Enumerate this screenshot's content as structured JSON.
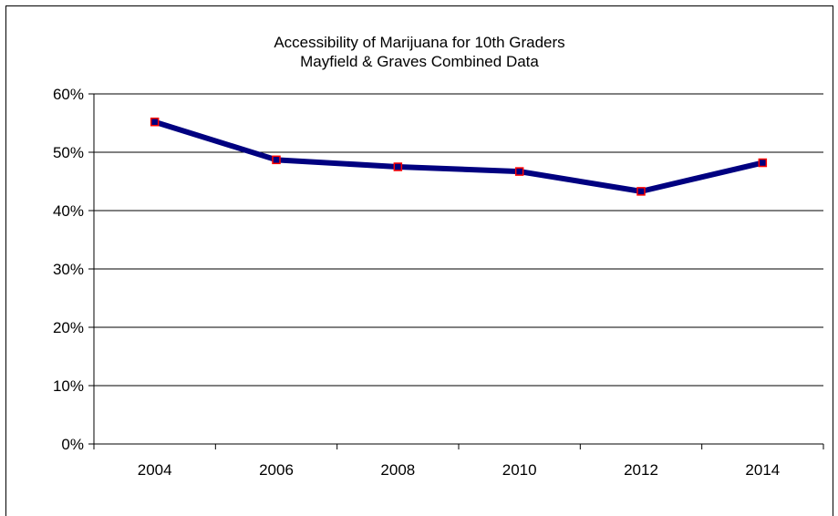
{
  "chart_data": {
    "type": "line",
    "title": [
      "Accessibility of Marijuana for 10th Graders",
      "Mayfield & Graves Combined Data"
    ],
    "xlabel": "",
    "ylabel": "",
    "categories": [
      "2004",
      "2006",
      "2008",
      "2010",
      "2012",
      "2014"
    ],
    "series": [
      {
        "values": [
          0.552,
          0.487,
          0.475,
          0.467,
          0.433,
          0.482
        ]
      }
    ],
    "ylim": [
      0,
      0.6
    ],
    "yticks": [
      0,
      0.1,
      0.2,
      0.3,
      0.4,
      0.5,
      0.6
    ],
    "ytick_labels": [
      "0%",
      "10%",
      "20%",
      "30%",
      "40%",
      "50%",
      "60%"
    ],
    "grid": "horizontal",
    "legend": "none",
    "colors": {
      "line": "#000080",
      "marker_edge": "#ff0000",
      "marker_fill": "#000080"
    }
  }
}
